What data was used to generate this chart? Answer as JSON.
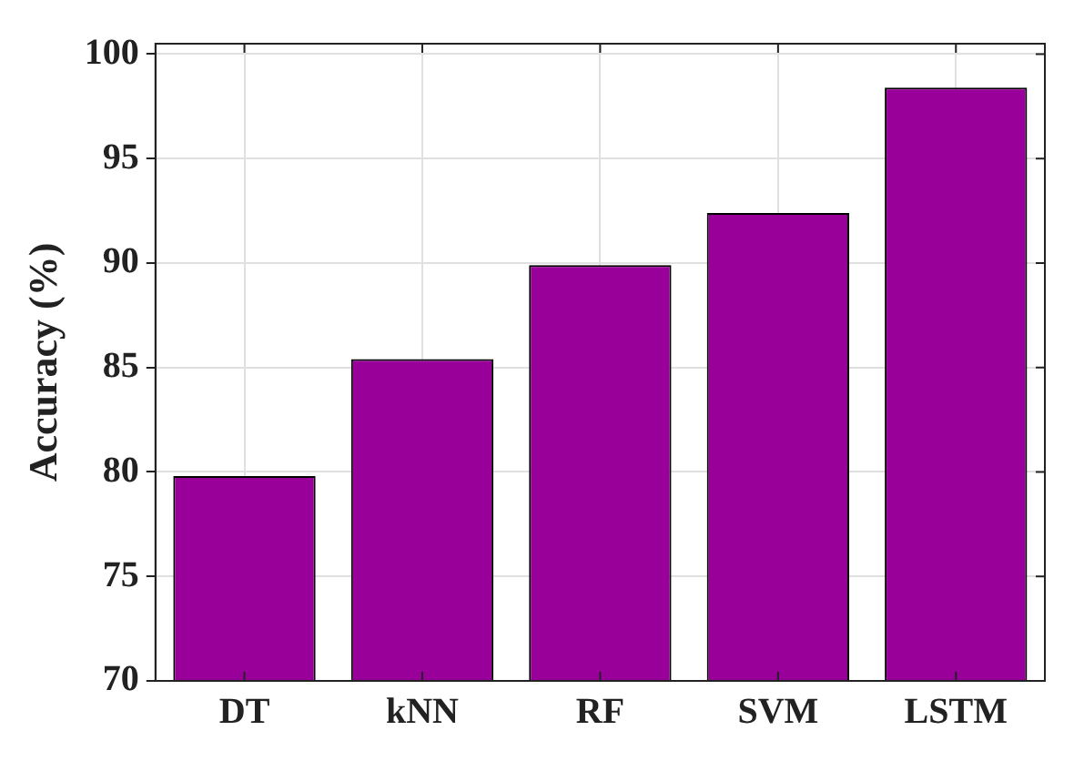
{
  "chart_data": {
    "type": "bar",
    "ylabel": "Accuracy (%)",
    "categories": [
      "DT",
      "kNN",
      "RF",
      "SVM",
      "LSTM"
    ],
    "values": [
      79.8,
      85.4,
      89.9,
      92.4,
      98.4
    ],
    "color": "#990099",
    "ylim": [
      70,
      100.5
    ],
    "yticks": [
      70,
      75,
      80,
      85,
      90,
      95,
      100
    ],
    "grid": true,
    "legend": false
  }
}
